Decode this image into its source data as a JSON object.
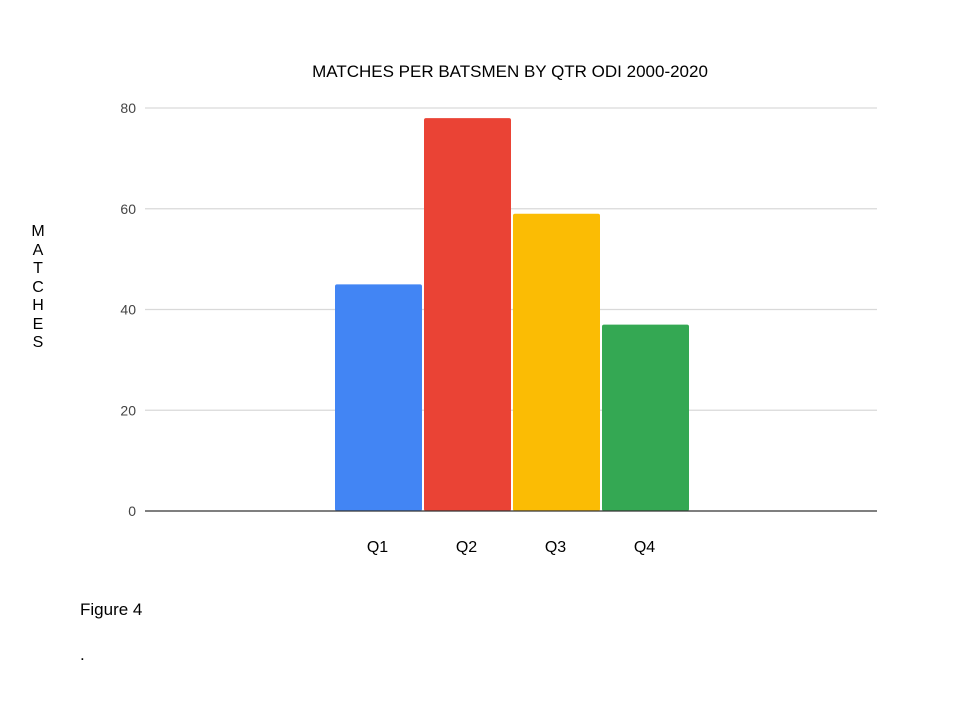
{
  "chart_data": {
    "type": "bar",
    "title": "MATCHES PER BATSMEN BY QTR ODI 2000-2020",
    "xlabel": "",
    "ylabel": "MATCHES",
    "categories": [
      "Q1",
      "Q2",
      "Q3",
      "Q4"
    ],
    "values": [
      45,
      78,
      59,
      37
    ],
    "colors": [
      "#4285F4",
      "#EA4335",
      "#FBBC04",
      "#34A853"
    ],
    "ylim": [
      0,
      80
    ],
    "yticks": [
      0,
      20,
      40,
      60,
      80
    ],
    "grid": true,
    "legend": "none"
  },
  "caption": "Figure 4",
  "footnote": "."
}
